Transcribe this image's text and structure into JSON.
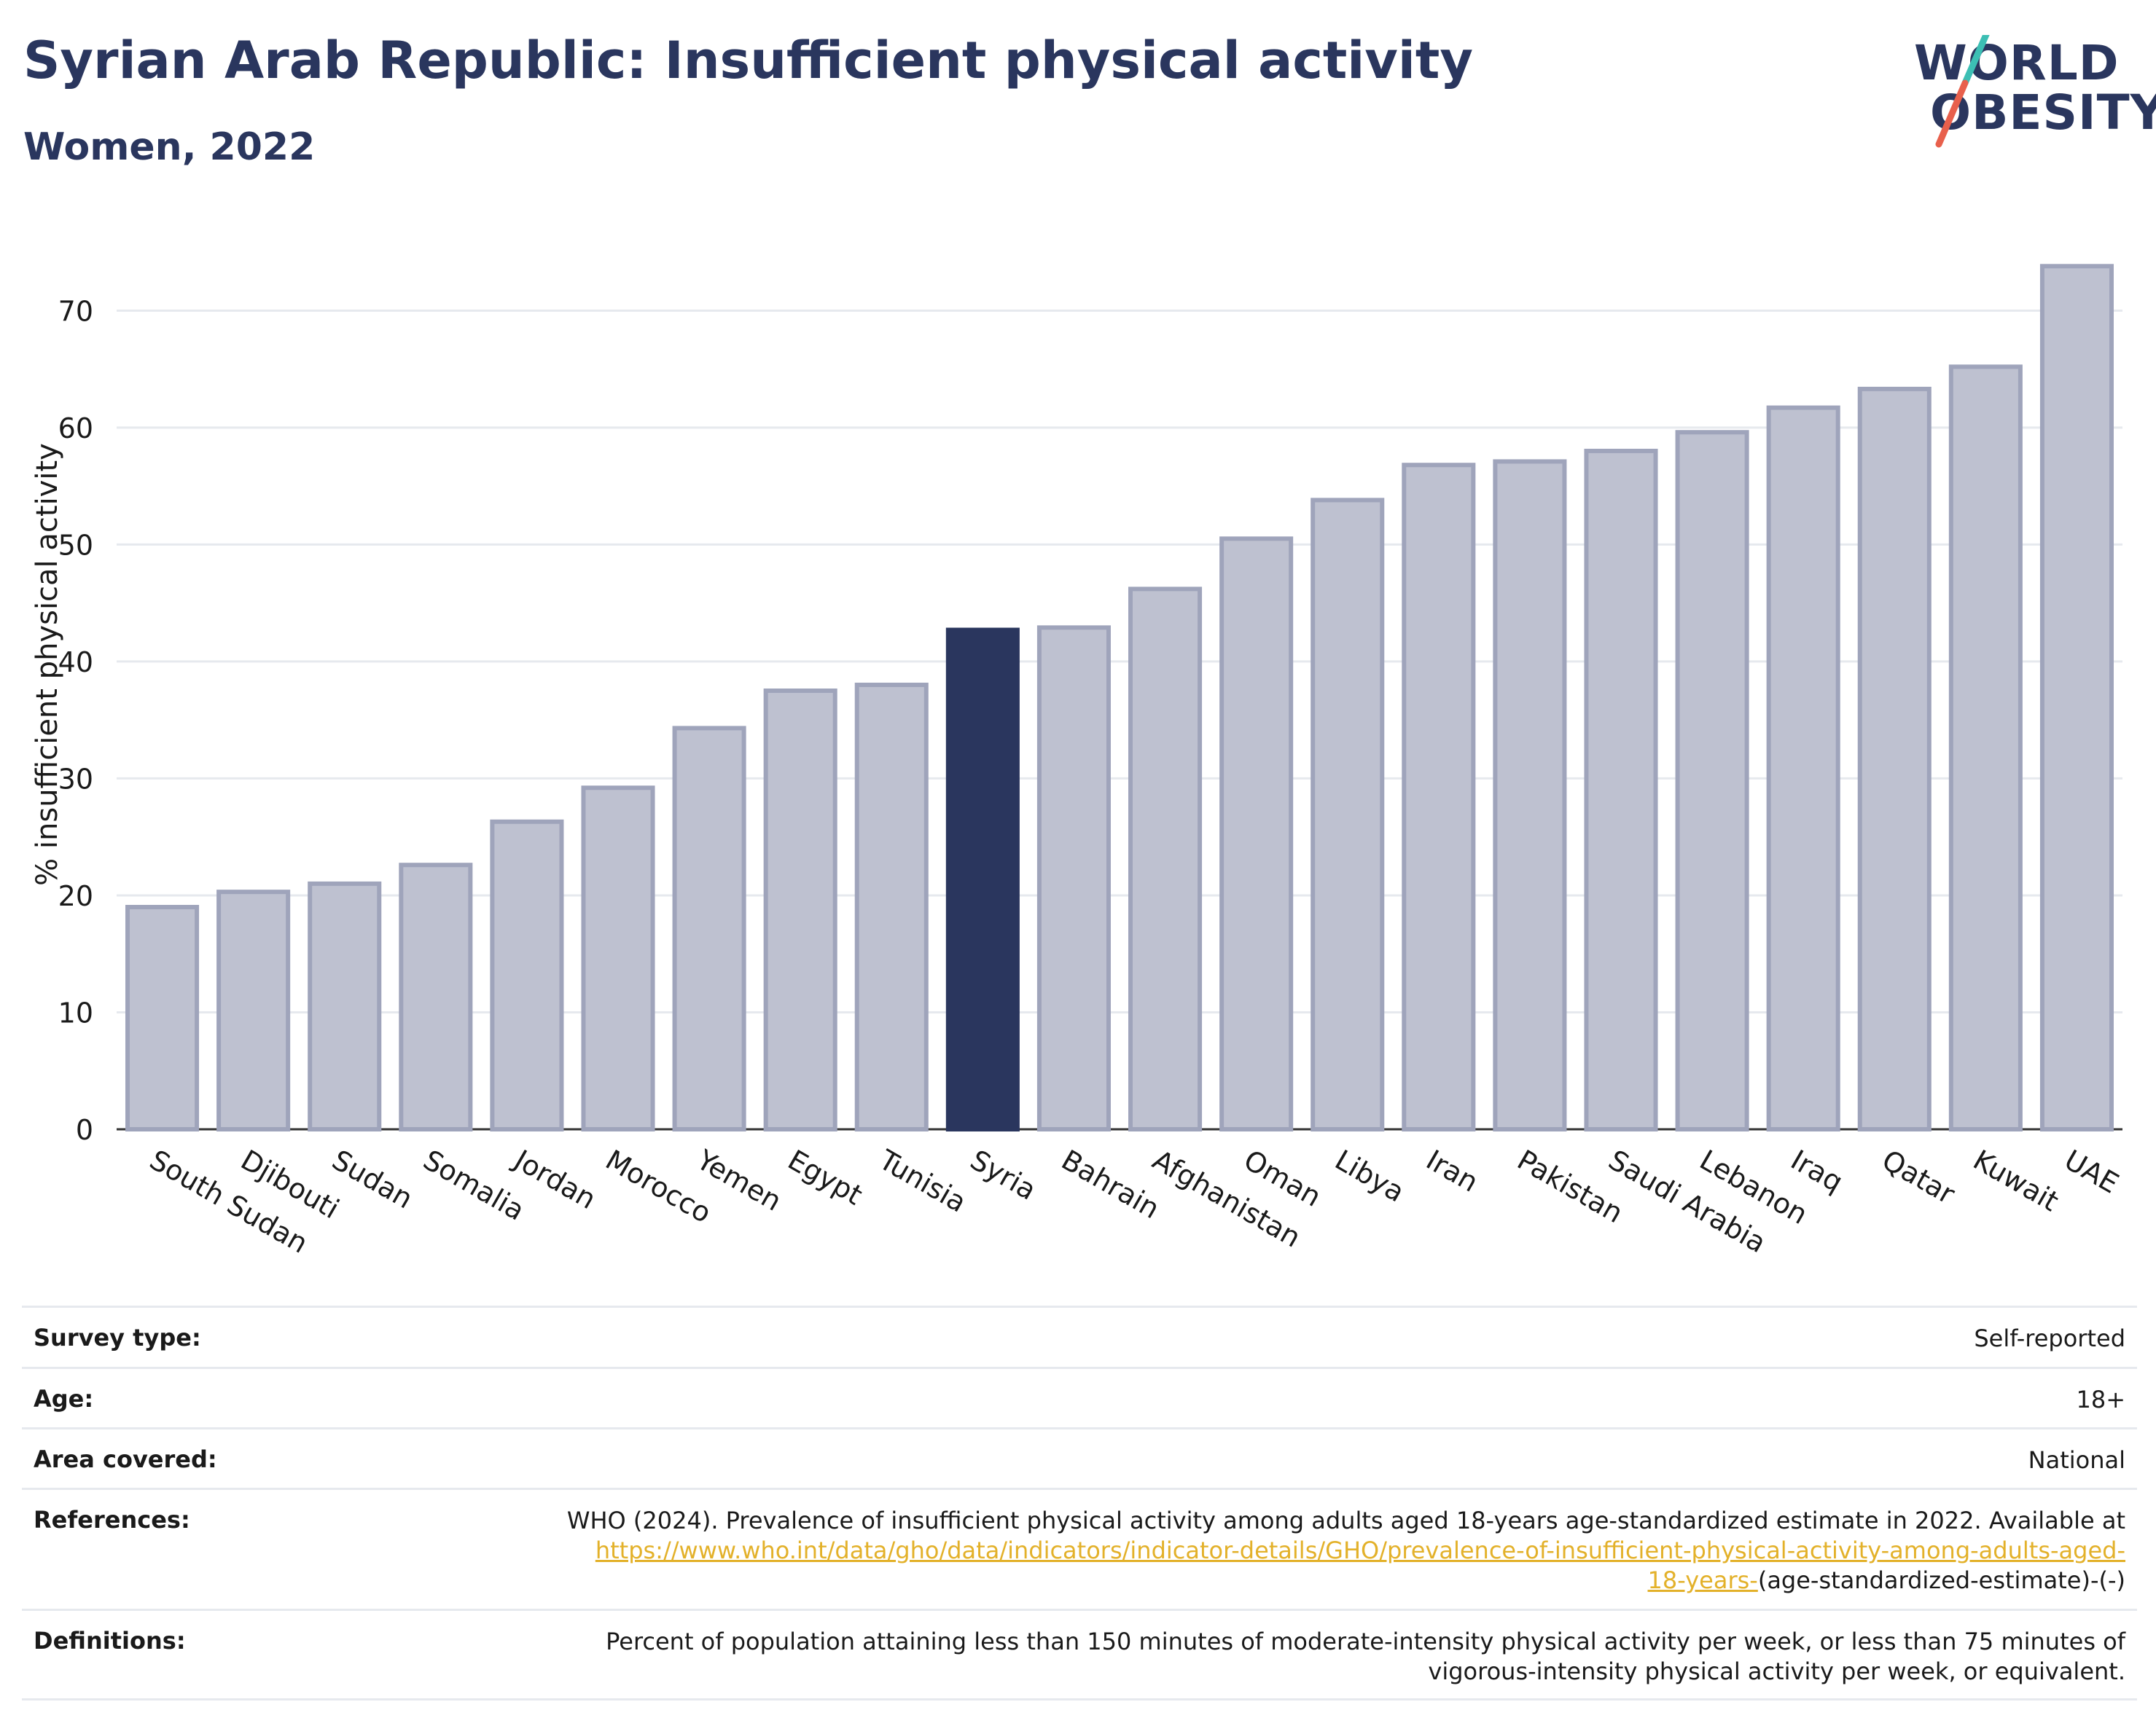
{
  "title": "Syrian Arab Republic: Insufficient physical activity",
  "subtitle": "Women, 2022",
  "logo": {
    "line1": "WORLD",
    "line2": "OBESITY"
  },
  "colors": {
    "highlight": "#2a365e",
    "bar": "#bec1d0",
    "bar_stroke": "#9fa4bb",
    "grid": "#e6e9ee",
    "link": "#e3b12a",
    "logo_teal": "#3cbfb4",
    "logo_red": "#e8604c"
  },
  "chart_data": {
    "type": "bar",
    "categories": [
      "South Sudan",
      "Djibouti",
      "Sudan",
      "Somalia",
      "Jordan",
      "Morocco",
      "Yemen",
      "Egypt",
      "Tunisia",
      "Syria",
      "Bahrain",
      "Afghanistan",
      "Oman",
      "Libya",
      "Iran",
      "Pakistan",
      "Saudi Arabia",
      "Lebanon",
      "Iraq",
      "Qatar",
      "Kuwait",
      "UAE"
    ],
    "values": [
      19.0,
      20.3,
      21.0,
      22.6,
      26.3,
      29.2,
      34.3,
      37.5,
      38.0,
      42.7,
      42.9,
      46.2,
      50.5,
      53.8,
      56.8,
      57.1,
      58.0,
      59.6,
      61.7,
      63.3,
      65.2,
      73.8
    ],
    "highlight": "Syria",
    "ylabel": "% insufficient physical activity",
    "xlabel": "",
    "ylim": [
      0,
      76
    ],
    "yticks": [
      0,
      10,
      20,
      30,
      40,
      50,
      60,
      70
    ],
    "grid": true
  },
  "meta": {
    "survey_type": {
      "label": "Survey type:",
      "value": "Self-reported"
    },
    "age": {
      "label": "Age:",
      "value": "18+"
    },
    "area": {
      "label": "Area covered:",
      "value": "National"
    },
    "references": {
      "label": "References:",
      "text": "WHO (2024). Prevalence of insufficient physical activity among adults aged 18-years age-standardized estimate in 2022. Available at",
      "link1": "https://www.who.int/data/gho/data/indicators/indicator-details/GHO/prevalence-of-insufficient-physical-activity-among-adults-aged-",
      "link2": "18-years-",
      "tail": "(age-standardized-estimate)-(-)"
    },
    "definitions": {
      "label": "Definitions:",
      "line1": "Percent of population attaining less than 150 minutes of moderate-intensity physical activity per week, or less than 75 minutes of",
      "line2": "vigorous-intensity physical activity per week, or equivalent."
    }
  }
}
